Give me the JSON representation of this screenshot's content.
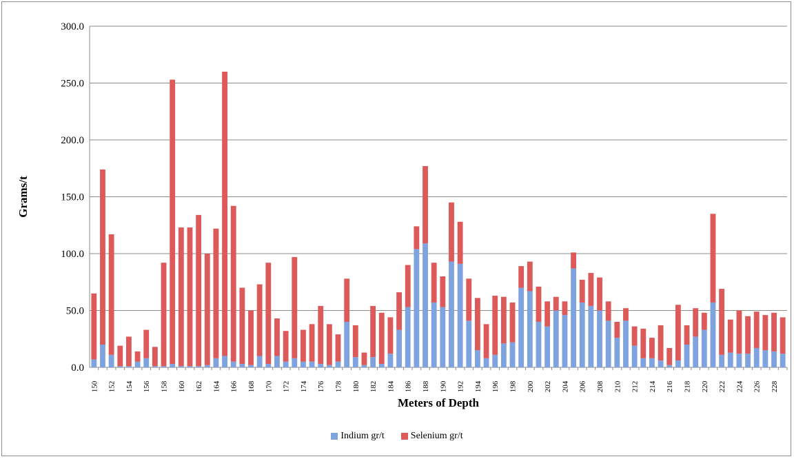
{
  "chart_data": {
    "type": "bar",
    "stacked": true,
    "title": "",
    "xlabel": "Meters of Depth",
    "ylabel": "Grams/t",
    "ylim": [
      0,
      300
    ],
    "y_ticks": [
      "0.0",
      "50.0",
      "100.0",
      "150.0",
      "200.0",
      "250.0",
      "300.0"
    ],
    "grid": "horizontal",
    "legend_position": "bottom",
    "categories": [
      "150",
      "151",
      "152",
      "153",
      "154",
      "155",
      "156",
      "157",
      "158",
      "159",
      "160",
      "161",
      "162",
      "163",
      "164",
      "165",
      "166",
      "167",
      "168",
      "169",
      "170",
      "171",
      "172",
      "173",
      "174",
      "175",
      "176",
      "177",
      "178",
      "179",
      "180",
      "181",
      "182",
      "183",
      "184",
      "185",
      "186",
      "187",
      "188",
      "189",
      "190",
      "191",
      "192",
      "193",
      "194",
      "195",
      "196",
      "197",
      "198",
      "199",
      "200",
      "201",
      "202",
      "203",
      "204",
      "205",
      "206",
      "207",
      "208",
      "209",
      "210",
      "211",
      "212",
      "213",
      "214",
      "215",
      "216",
      "217",
      "218",
      "219",
      "220",
      "221",
      "222",
      "223",
      "224",
      "225",
      "226",
      "227",
      "228",
      "229"
    ],
    "series": [
      {
        "name": "Indium gr/t",
        "color": "#7fa3df",
        "values": [
          7,
          20,
          11,
          1,
          1,
          5,
          8,
          1,
          1,
          3,
          1,
          1,
          1,
          2,
          8,
          10,
          5,
          3,
          2,
          10,
          3,
          10,
          5,
          8,
          5,
          5,
          3,
          2,
          5,
          40,
          9,
          2,
          9,
          3,
          12,
          33,
          53,
          104,
          109,
          57,
          53,
          93,
          91,
          41,
          15,
          8,
          11,
          21,
          22,
          70,
          67,
          40,
          36,
          50,
          46,
          87,
          57,
          54,
          50,
          41,
          26,
          41,
          19,
          8,
          8,
          6,
          2,
          6,
          20,
          27,
          33,
          57,
          11,
          13,
          12,
          12,
          17,
          15,
          14,
          12
        ]
      },
      {
        "name": "Selenium gr/t",
        "color": "#dd5a5a",
        "values": [
          58,
          154,
          106,
          18,
          26,
          9,
          25,
          17,
          91,
          250,
          122,
          122,
          133,
          98,
          114,
          250,
          137,
          67,
          48,
          63,
          89,
          33,
          27,
          89,
          28,
          33,
          51,
          36,
          24,
          38,
          28,
          11,
          45,
          45,
          32,
          33,
          37,
          20,
          68,
          35,
          27,
          52,
          37,
          37,
          46,
          30,
          52,
          41,
          35,
          19,
          26,
          31,
          22,
          12,
          12,
          14,
          20,
          29,
          29,
          17,
          14,
          11,
          17,
          26,
          18,
          31,
          15,
          49,
          17,
          25,
          15,
          78,
          58,
          29,
          38,
          33,
          32,
          31,
          34,
          32
        ]
      }
    ]
  }
}
